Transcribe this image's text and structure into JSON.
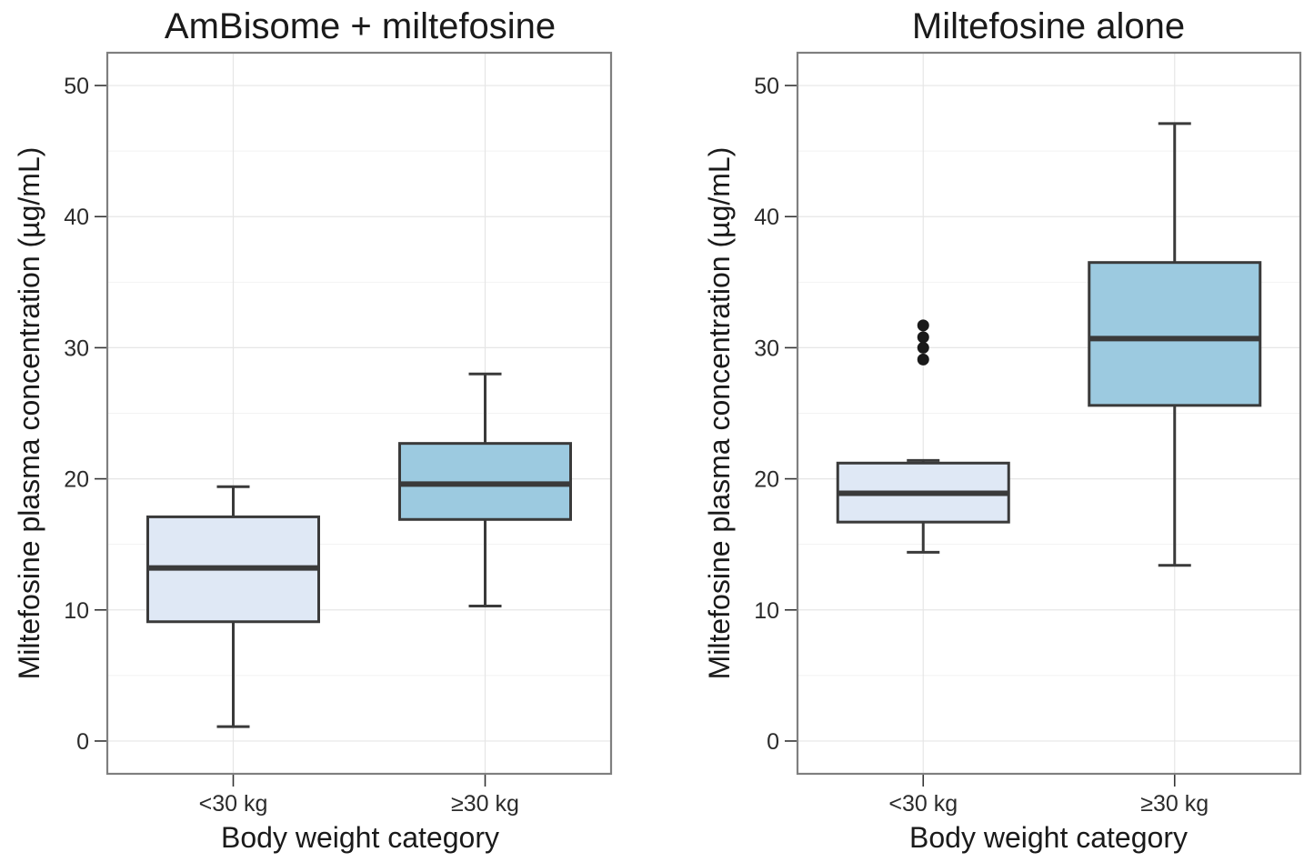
{
  "chart_data": [
    {
      "type": "boxplot",
      "title": "AmBisome + miltefosine",
      "xlabel": "Body weight category",
      "ylabel": "Miltefosine plasma concentration (µg/mL)",
      "ylim": [
        -2.5,
        52.5
      ],
      "yticks": [
        0,
        10,
        20,
        30,
        40,
        50
      ],
      "grid": true,
      "legend": "none",
      "categories": [
        "<30 kg",
        "≥30 kg"
      ],
      "boxes": [
        {
          "category": "<30 kg",
          "whisker_low": 1.1,
          "q1": 9.1,
          "median": 13.2,
          "q3": 17.1,
          "whisker_high": 19.4,
          "outliers": [],
          "fill": "#dfe8f5"
        },
        {
          "category": "≥30 kg",
          "whisker_low": 10.3,
          "q1": 16.9,
          "median": 19.6,
          "q3": 22.7,
          "whisker_high": 28.0,
          "outliers": [],
          "fill": "#9ccae0"
        }
      ]
    },
    {
      "type": "boxplot",
      "title": "Miltefosine alone",
      "xlabel": "Body weight category",
      "ylabel": "Miltefosine plasma concentration (µg/mL)",
      "ylim": [
        -2.5,
        52.5
      ],
      "yticks": [
        0,
        10,
        20,
        30,
        40,
        50
      ],
      "grid": true,
      "legend": "none",
      "categories": [
        "<30 kg",
        "≥30 kg"
      ],
      "boxes": [
        {
          "category": "<30 kg",
          "whisker_low": 14.4,
          "q1": 16.7,
          "median": 18.9,
          "q3": 21.2,
          "whisker_high": 21.4,
          "outliers": [
            29.1,
            30.0,
            30.8,
            31.7
          ],
          "fill": "#dfe8f5"
        },
        {
          "category": "≥30 kg",
          "whisker_low": 13.4,
          "q1": 25.6,
          "median": 30.7,
          "q3": 36.5,
          "whisker_high": 47.1,
          "outliers": [],
          "fill": "#9ccae0"
        }
      ]
    }
  ],
  "colors": {
    "panel_border": "#7f7f7f",
    "grid_major": "#e6e6e6",
    "grid_minor": "#f2f2f2",
    "box_stroke": "#3a3a3a",
    "outlier": "#1a1a1a",
    "text": "#1a1a1a"
  }
}
